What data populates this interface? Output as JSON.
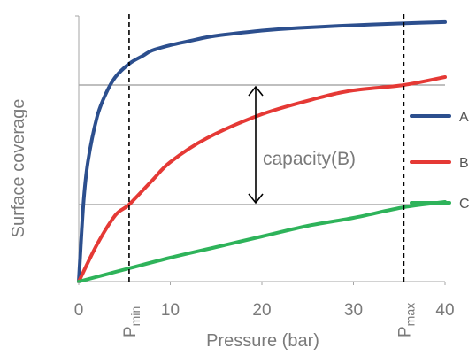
{
  "chart_data": {
    "type": "line",
    "title": "",
    "xlabel": "Pressure (bar)",
    "ylabel": "Surface coverage",
    "xlim": [
      0,
      40
    ],
    "ylim": [
      0,
      1
    ],
    "x_ticks": [
      0,
      10,
      20,
      30,
      40
    ],
    "y_ticks_shown": false,
    "grid": false,
    "legend_position": "right",
    "markers": {
      "p_min": {
        "x": 5.5,
        "label_main": "P",
        "label_sub": "min"
      },
      "p_max": {
        "x": 35.5,
        "label_main": "P",
        "label_sub": "max"
      }
    },
    "annotation": {
      "text": "capacity(B)",
      "series": "B",
      "from_x": 5.5,
      "to_x": 35.5,
      "y_low": 0.29,
      "y_high": 0.74
    },
    "series": [
      {
        "name": "A",
        "color": "#2c4f8e",
        "x": [
          0,
          0.5,
          1,
          2,
          3,
          4,
          5.5,
          7,
          8,
          10,
          12,
          14,
          16,
          20,
          24,
          28,
          32,
          36,
          40
        ],
        "y": [
          0,
          0.29,
          0.45,
          0.62,
          0.71,
          0.77,
          0.82,
          0.85,
          0.87,
          0.89,
          0.905,
          0.92,
          0.93,
          0.945,
          0.955,
          0.962,
          0.968,
          0.973,
          0.977
        ]
      },
      {
        "name": "B",
        "color": "#e53935",
        "x": [
          0,
          2,
          4,
          5.5,
          8,
          10,
          14,
          20,
          26,
          30,
          35.5,
          40
        ],
        "y": [
          0,
          0.14,
          0.25,
          0.29,
          0.38,
          0.45,
          0.54,
          0.63,
          0.69,
          0.72,
          0.74,
          0.77
        ]
      },
      {
        "name": "C",
        "color": "#2eb35a",
        "x": [
          0,
          5.5,
          10,
          15,
          20,
          25,
          30,
          35.5,
          40
        ],
        "y": [
          0,
          0.05,
          0.09,
          0.13,
          0.17,
          0.21,
          0.24,
          0.28,
          0.3
        ]
      }
    ]
  }
}
